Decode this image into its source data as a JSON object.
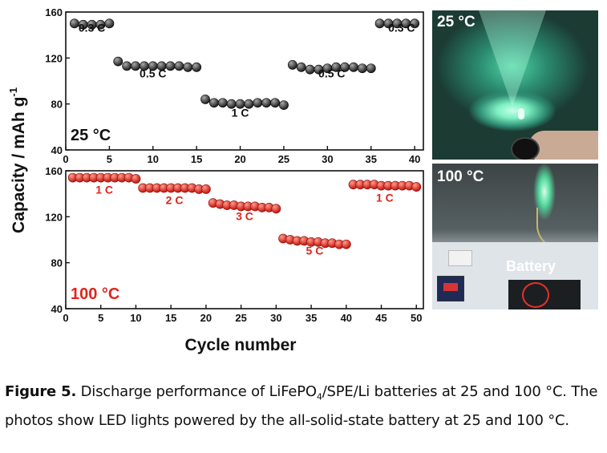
{
  "chart_data": [
    {
      "type": "scatter",
      "panel": "25 °C",
      "annotation": "25 °C",
      "x": [
        1,
        2,
        3,
        4,
        5,
        6,
        7,
        8,
        9,
        10,
        11,
        12,
        13,
        14,
        15,
        16,
        17,
        18,
        19,
        20,
        21,
        22,
        23,
        24,
        25,
        26,
        27,
        28,
        29,
        30,
        31,
        32,
        33,
        34,
        35,
        36,
        37,
        38,
        39,
        40
      ],
      "y": [
        150,
        149,
        149,
        149,
        150,
        117,
        113,
        113,
        113,
        113,
        113,
        113,
        113,
        112,
        112,
        84,
        81,
        81,
        80,
        80,
        80,
        81,
        81,
        81,
        79,
        114,
        112,
        110,
        110,
        111,
        112,
        112,
        112,
        111,
        111,
        150,
        150,
        150,
        150,
        150
      ],
      "rate_labels": [
        {
          "text": "0.3 C",
          "x": 3,
          "y": 143
        },
        {
          "text": "0.5 C",
          "x": 10,
          "y": 103
        },
        {
          "text": "1 C",
          "x": 20,
          "y": 69
        },
        {
          "text": "0.5 C",
          "x": 30.5,
          "y": 103
        },
        {
          "text": "0.3 C",
          "x": 38.5,
          "y": 143
        }
      ],
      "xlim": [
        0,
        41
      ],
      "ylim": [
        40,
        160
      ],
      "xticks": [
        0,
        5,
        10,
        15,
        20,
        25,
        30,
        35,
        40
      ],
      "yticks": [
        40,
        80,
        120,
        160
      ],
      "marker_color": "#2d2d2d"
    },
    {
      "type": "scatter",
      "panel": "100 °C",
      "annotation": "100 °C",
      "x": [
        1,
        2,
        3,
        4,
        5,
        6,
        7,
        8,
        9,
        10,
        11,
        12,
        13,
        14,
        15,
        16,
        17,
        18,
        19,
        20,
        21,
        22,
        23,
        24,
        25,
        26,
        27,
        28,
        29,
        30,
        31,
        32,
        33,
        34,
        35,
        36,
        37,
        38,
        39,
        40,
        41,
        42,
        43,
        44,
        45,
        46,
        47,
        48,
        49,
        50
      ],
      "y": [
        154,
        154,
        154,
        154,
        154,
        154,
        154,
        154,
        154,
        153,
        145,
        145,
        145,
        145,
        145,
        145,
        145,
        145,
        144,
        144,
        132,
        131,
        130,
        130,
        129,
        129,
        129,
        128,
        128,
        127,
        101,
        100,
        99,
        99,
        98,
        98,
        97,
        97,
        96,
        96,
        148,
        148,
        148,
        148,
        147,
        147,
        147,
        147,
        147,
        146
      ],
      "rate_labels": [
        {
          "text": "1 C",
          "x": 5.5,
          "y": 140
        },
        {
          "text": "2 C",
          "x": 15.5,
          "y": 131
        },
        {
          "text": "3 C",
          "x": 25.5,
          "y": 117
        },
        {
          "text": "5 C",
          "x": 35.5,
          "y": 87
        },
        {
          "text": "1 C",
          "x": 45.5,
          "y": 133
        }
      ],
      "xlim": [
        0,
        51
      ],
      "ylim": [
        40,
        160
      ],
      "xticks": [
        0,
        5,
        10,
        15,
        20,
        25,
        30,
        35,
        40,
        45,
        50
      ],
      "yticks": [
        40,
        80,
        120,
        160
      ],
      "marker_color": "#e0241d"
    }
  ],
  "axes": {
    "ylabel": "Capacity / mAh g",
    "ylabel_sup": "-1",
    "xlabel": "Cycle number"
  },
  "photos": {
    "top_label": "25 °C",
    "bottom_label": "100 °C",
    "battery_label": "Battery"
  },
  "caption": {
    "figure": "Figure 5.",
    "text_before_sub": " Discharge performance of LiFePO",
    "sub": "4",
    "text_after_sub": "/SPE/Li batteries at 25 and 100 °C. The photos show LED lights powered by the all-solid-state battery at 25 and 100 °C."
  }
}
